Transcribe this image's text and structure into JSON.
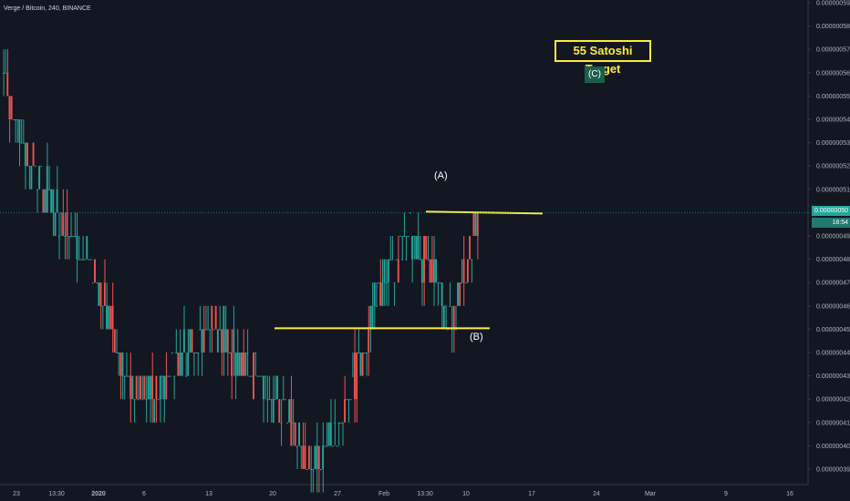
{
  "header": {
    "symbol_line": "Verge / Bitcoin, 240, BINANCE"
  },
  "annotations": {
    "target_text": "55 Satoshi Target",
    "wave_a": "(A)",
    "wave_b": "(B)",
    "wave_c": "(C)"
  },
  "price_scale": {
    "current_price": "0.00000050",
    "countdown": "18:54",
    "badge_color": "#26a69a"
  },
  "colors": {
    "background": "#131722",
    "up": "#26a69a",
    "down": "#ef5350",
    "level_line": "#ffeb3b",
    "axis_text": "#b2b5be",
    "axis_line": "#363a45"
  },
  "chart_data": {
    "type": "candlestick",
    "title": "Verge / Bitcoin, 240, BINANCE",
    "ylim": [
      3.9e-07,
      5.9e-07
    ],
    "y_ticks": [
      "0.00000039",
      "0.00000040",
      "0.00000041",
      "0.00000042",
      "0.00000043",
      "0.00000044",
      "0.00000045",
      "0.00000046",
      "0.00000047",
      "0.00000048",
      "0.00000049",
      "0.00000050",
      "0.00000051",
      "0.00000052",
      "0.00000053",
      "0.00000054",
      "0.00000055",
      "0.00000056",
      "0.00000057",
      "0.00000058",
      "0.00000059"
    ],
    "x_ticks": [
      "23",
      "13:30",
      "2020",
      "6",
      "13",
      "20",
      "27",
      "Feb",
      "13:30",
      "10",
      "17",
      "24",
      "Mar",
      "9",
      "16"
    ],
    "approx_closes": [
      5.6e-07,
      5.4e-07,
      5.2e-07,
      5.1e-07,
      5e-07,
      4.9e-07,
      4.8e-07,
      4.7e-07,
      4.5e-07,
      4.3e-07,
      4.2e-07,
      4.2e-07,
      4.3e-07,
      4.4e-07,
      4.4e-07,
      4.5e-07,
      4.5e-07,
      4.4e-07,
      4.3e-07,
      4.3e-07,
      4.2e-07,
      4.1e-07,
      4e-07,
      3.9e-07,
      4e-07,
      4.1e-07,
      4.3e-07,
      4.5e-07,
      4.7e-07,
      4.8e-07,
      4.9e-07,
      4.8e-07,
      4.7e-07,
      4.5e-07,
      4.7e-07,
      5e-07
    ],
    "levels": [
      {
        "price": 5e-07,
        "label": "(A)"
      },
      {
        "price": 4.5e-07,
        "label": "(B)"
      }
    ],
    "target": {
      "price": 5.5e-07,
      "label": "55 Satoshi Target"
    },
    "grid": false,
    "last_price": 5e-07
  }
}
